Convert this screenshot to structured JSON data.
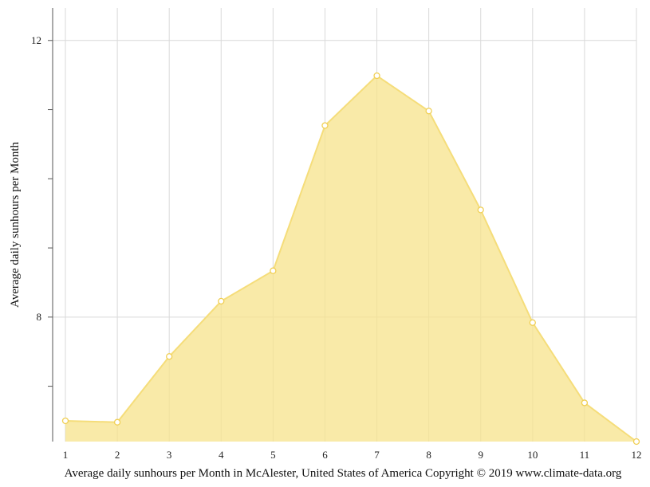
{
  "chart_data": {
    "type": "area",
    "title": "",
    "x": [
      1,
      2,
      3,
      4,
      5,
      6,
      7,
      8,
      9,
      10,
      11,
      12
    ],
    "series": [
      {
        "name": "",
        "values": [
          6.5,
          6.48,
          7.43,
          8.23,
          8.67,
          10.77,
          11.49,
          10.98,
          9.55,
          7.92,
          6.76,
          6.2
        ]
      }
    ],
    "xlabel": "Average daily sunhours per Month in McAlester, United States of America Copyright © 2019 www.climate-data.org",
    "ylabel": "Average daily sunhours per Month",
    "xlim": [
      1,
      12
    ],
    "ylim": [
      6.2,
      12.47
    ],
    "x_ticks": [
      "1",
      "2",
      "3",
      "4",
      "5",
      "6",
      "7",
      "8",
      "9",
      "10",
      "11",
      "12"
    ],
    "y_ticks": [
      {
        "value": 8,
        "label": "8"
      },
      {
        "value": 12,
        "label": "12"
      }
    ],
    "y_minor_ticks": [
      7,
      9,
      10,
      11
    ],
    "grid": true,
    "legend": "none",
    "colors": {
      "fill": "#f7e38b",
      "line": "#f5dd7a",
      "marker_stroke": "#f0cf55",
      "grid": "#d9d9d9",
      "axis": "#555555"
    }
  }
}
